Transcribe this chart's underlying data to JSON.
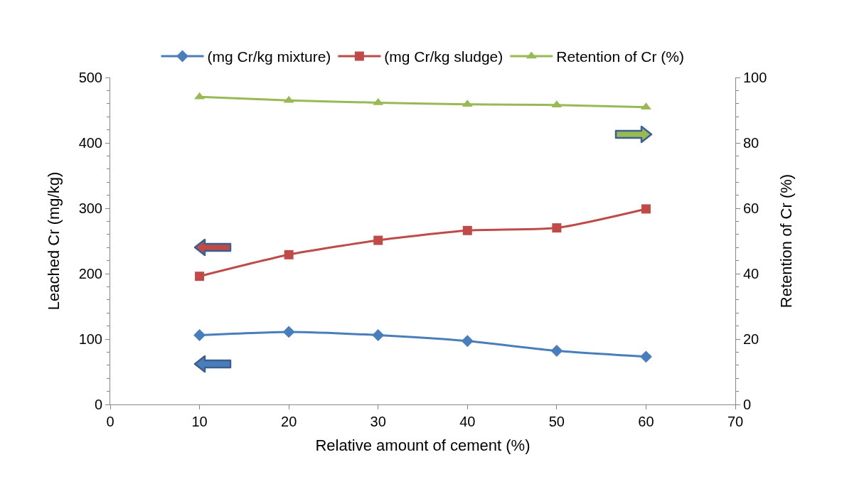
{
  "chart_data": {
    "type": "line",
    "xlabel": "Relative amount of cement (%)",
    "ylabel": "Leached Cr (mg/kg)",
    "y2label": "Retention of Cr (%)",
    "x": [
      10,
      20,
      30,
      40,
      50,
      60
    ],
    "xlim": [
      0,
      70
    ],
    "xticks": [
      0,
      10,
      20,
      30,
      40,
      50,
      60,
      70
    ],
    "ylim": [
      0,
      500
    ],
    "yticks": [
      0,
      100,
      200,
      300,
      400,
      500
    ],
    "y2lim": [
      0,
      100
    ],
    "y2ticks": [
      0,
      20,
      40,
      60,
      80,
      100
    ],
    "grid": false,
    "legend": "top",
    "series": [
      {
        "name": "(mg Cr/kg mixture)",
        "color": "#4a7ebb",
        "marker": "diamond",
        "values": [
          106,
          111,
          106,
          97,
          82,
          73
        ]
      },
      {
        "name": "(mg Cr/kg sludge)",
        "color": "#be4b48",
        "marker": "square",
        "values": [
          196,
          229,
          251,
          266,
          270,
          299
        ]
      },
      {
        "name": "Retention of Cr (%)",
        "color": "#98b954",
        "marker": "triangle",
        "axis": "y2",
        "values": [
          94.1,
          93.0,
          92.3,
          91.8,
          91.6,
          90.9
        ]
      }
    ]
  }
}
